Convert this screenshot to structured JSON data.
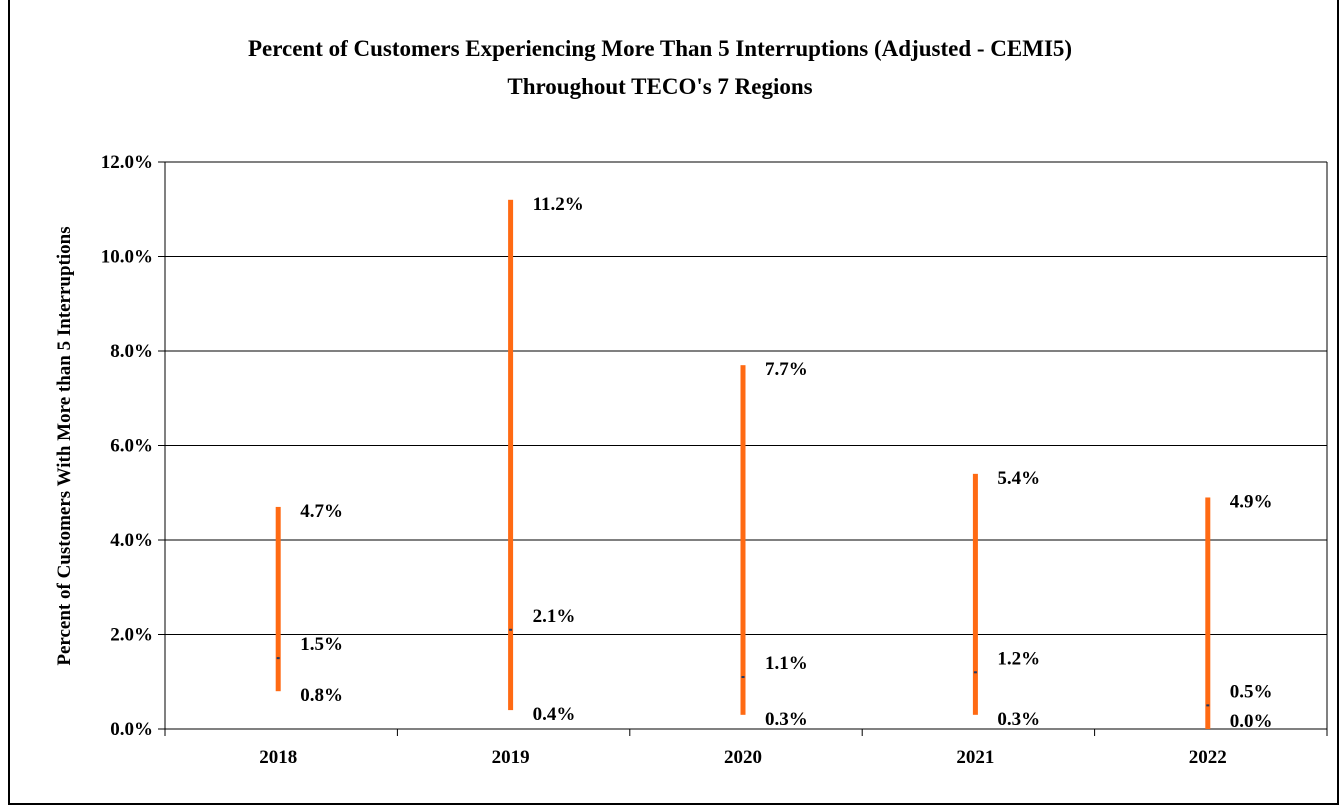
{
  "chart_data": {
    "type": "high-low-average",
    "title": "Percent of Customers Experiencing More Than 5 Interruptions (Adjusted - CEMI5)",
    "subtitle": "Throughout TECO's 7 Regions",
    "xlabel": "",
    "ylabel": "Percent of Customers With More than 5 Interruptions",
    "categories": [
      "2018",
      "2019",
      "2020",
      "2021",
      "2022"
    ],
    "yticks": [
      "0.0%",
      "2.0%",
      "4.0%",
      "6.0%",
      "8.0%",
      "10.0%",
      "12.0%"
    ],
    "ylim": [
      0,
      12
    ],
    "grid": true,
    "series": [
      {
        "name": "",
        "role": "high",
        "values": [
          4.7,
          11.2,
          7.7,
          5.4,
          4.9
        ],
        "labels": [
          "4.7%",
          "11.2%",
          "7.7%",
          "5.4%",
          "4.9%"
        ]
      },
      {
        "name": "",
        "role": "average",
        "values": [
          1.5,
          2.1,
          1.1,
          1.2,
          0.5
        ],
        "labels": [
          "1.5%",
          "2.1%",
          "1.1%",
          "1.2%",
          "0.5%"
        ]
      },
      {
        "name": "",
        "role": "low",
        "values": [
          0.8,
          0.4,
          0.3,
          0.3,
          0.0
        ],
        "labels": [
          "0.8%",
          "0.4%",
          "0.3%",
          "0.3%",
          "0.0%"
        ]
      }
    ],
    "colors": {
      "range_bar": "#ff6a13",
      "average_marker": "#1f3864",
      "grid": "#000000"
    }
  }
}
